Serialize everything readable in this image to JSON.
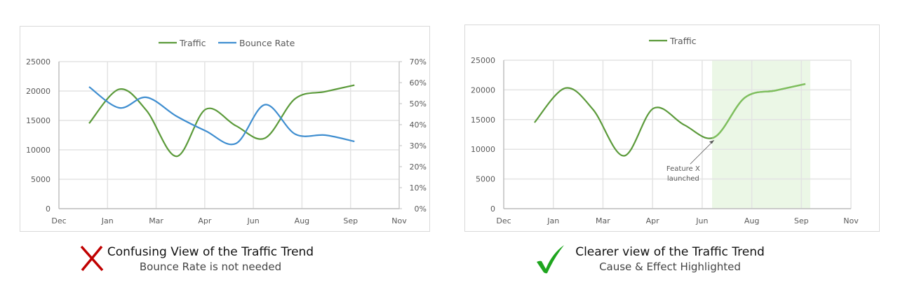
{
  "chart_data": [
    {
      "type": "line",
      "legend_position": "top",
      "grid": true,
      "x_axis": {
        "type": "date",
        "min": "2016-12-01",
        "max": "2017-11-16",
        "major_unit_days": 50,
        "tick_labels": [
          "Dec",
          "Jan",
          "Mar",
          "Apr",
          "Jun",
          "Aug",
          "Sep",
          "Nov"
        ]
      },
      "y_axis": {
        "min": 0,
        "max": 25000,
        "ticks": [
          "0",
          "5000",
          "10000",
          "15000",
          "20000",
          "25000"
        ]
      },
      "y2_axis": {
        "min": 0,
        "max": 0.7,
        "ticks": [
          "0%",
          "10%",
          "20%",
          "30%",
          "40%",
          "50%",
          "60%",
          "70%"
        ]
      },
      "x": [
        "2017-01-01",
        "2017-02-01",
        "2017-03-01",
        "2017-04-01",
        "2017-05-01",
        "2017-06-01",
        "2017-07-01",
        "2017-08-01",
        "2017-09-01",
        "2017-10-01"
      ],
      "series": [
        {
          "name": "Traffic",
          "axis": "left",
          "color": "#5b9a3a",
          "values": [
            14500,
            20300,
            16700,
            8900,
            16900,
            14100,
            12000,
            18700,
            19900,
            21000
          ]
        },
        {
          "name": "Bounce Rate",
          "axis": "right",
          "color": "#3f8ed0",
          "values": [
            0.58,
            0.48,
            0.53,
            0.44,
            0.37,
            0.31,
            0.495,
            0.355,
            0.35,
            0.32
          ]
        }
      ]
    },
    {
      "type": "line",
      "legend_position": "top",
      "grid": true,
      "x_axis": {
        "type": "date",
        "min": "2016-12-01",
        "max": "2017-11-16",
        "major_unit_days": 50,
        "tick_labels": [
          "Dec",
          "Jan",
          "Mar",
          "Apr",
          "Jun",
          "Aug",
          "Sep",
          "Nov"
        ]
      },
      "y_axis": {
        "min": 0,
        "max": 25000,
        "ticks": [
          "0",
          "5000",
          "10000",
          "15000",
          "20000",
          "25000"
        ]
      },
      "x": [
        "2017-01-01",
        "2017-02-01",
        "2017-03-01",
        "2017-04-01",
        "2017-05-01",
        "2017-06-01",
        "2017-07-01",
        "2017-08-01",
        "2017-09-01",
        "2017-10-01"
      ],
      "series": [
        {
          "name": "Traffic",
          "axis": "left",
          "color": "#5b9a3a",
          "highlight_color": "#7fbf5e",
          "values": [
            14500,
            20300,
            16700,
            8900,
            16900,
            14100,
            12000,
            18700,
            19900,
            21000
          ]
        }
      ],
      "highlight_range": {
        "from": "2017-06-29",
        "to": "2017-10-06",
        "color": "#ebf7e6"
      },
      "annotation": {
        "text_lines": [
          "Feature X",
          "launched"
        ],
        "points_to": "2017-07-01"
      }
    }
  ],
  "captions": {
    "bad": {
      "title": "Confusing View of the Traffic Trend",
      "subtitle": "Bounce Rate is not needed",
      "icon": "cross-icon",
      "color": "#c00000"
    },
    "good": {
      "title": "Clearer view of the Traffic Trend",
      "subtitle": "Cause & Effect Highlighted",
      "icon": "checkmark-icon",
      "color": "#1ea51e"
    }
  }
}
